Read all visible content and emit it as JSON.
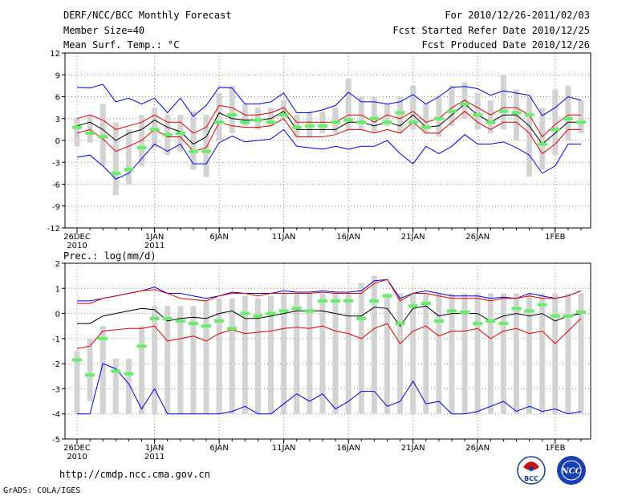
{
  "header": {
    "title": "DERF/NCC/BCC Monthly Forecast",
    "member_size": "Member Size=40",
    "panel1_variable": "Mean Surf. Temp.: °C",
    "period": "For 2010/12/26-2011/02/03",
    "fcst_started": "Fcst Started Refer Date 2010/12/25",
    "fcst_produced": "Fcst Produced Date 2010/12/26"
  },
  "footer": {
    "url": "http://cmdp.ncc.cma.gov.cn",
    "grads": "GrADS: COLA/IGES",
    "logo_bcc": "BCC",
    "logo_ncc": "NCC"
  },
  "colors": {
    "bar": "#d3d3d3",
    "median": "#66ee66",
    "mean": "#000000",
    "spread": "#dd0000",
    "extreme": "#0000dd"
  },
  "chart_data": [
    {
      "type": "box",
      "title": "Mean Surf. Temp.: °C",
      "ylim": [
        -12,
        12
      ],
      "yticks": [
        -12,
        -9,
        -6,
        -3,
        0,
        3,
        6,
        9,
        12
      ],
      "xticks": [
        {
          "day": 1,
          "label": "26DEC",
          "label2": "2010"
        },
        {
          "day": 7,
          "label": "1JAN",
          "label2": "2011"
        },
        {
          "day": 12,
          "label": "6JAN",
          "label2": ""
        },
        {
          "day": 17,
          "label": "11JAN",
          "label2": ""
        },
        {
          "day": 22,
          "label": "16JAN",
          "label2": ""
        },
        {
          "day": 27,
          "label": "21JAN",
          "label2": ""
        },
        {
          "day": 32,
          "label": "26JAN",
          "label2": ""
        },
        {
          "day": 38,
          "label": "1FEB",
          "label2": ""
        }
      ],
      "days": 40,
      "box_low": [
        -0.8,
        -0.3,
        -3.5,
        -7.5,
        -6,
        -3.5,
        -1,
        -2,
        -1.5,
        -4,
        -5,
        0,
        1,
        2,
        1.5,
        2,
        3,
        0.5,
        0.5,
        1,
        1,
        1.5,
        1.5,
        1,
        2,
        1,
        1.5,
        1,
        0.5,
        2,
        3,
        1.5,
        1,
        1.5,
        0,
        -5,
        -4,
        -2,
        0,
        1
      ],
      "box_high": [
        3,
        3.5,
        5,
        2.5,
        1.5,
        3.5,
        4.5,
        3.5,
        3.5,
        4,
        3.5,
        6.5,
        7.5,
        5,
        4.5,
        4.5,
        5.5,
        3.5,
        4,
        4,
        4.5,
        8.5,
        6,
        6,
        5,
        6,
        7.5,
        5,
        6,
        7.5,
        8,
        6.5,
        5.5,
        9,
        7,
        6,
        4.5,
        7,
        7.5,
        5.5
      ],
      "median": [
        1.8,
        1,
        0.5,
        -4.5,
        -4,
        -1,
        1.5,
        0.8,
        1,
        -1.5,
        -1.5,
        2.5,
        3.5,
        2.5,
        2.8,
        2.5,
        3.5,
        1.8,
        2,
        2,
        2.5,
        2.8,
        2.5,
        3,
        2.5,
        3.8,
        2.5,
        1.8,
        3,
        4,
        5,
        3.5,
        2.5,
        4,
        3.8,
        3.5,
        -0.5,
        1.5,
        3,
        2.5
      ],
      "mean": [
        2,
        2.5,
        1.5,
        0,
        1,
        1.5,
        2.8,
        1.8,
        1.2,
        -0.5,
        0.5,
        3.8,
        3,
        2.8,
        2.8,
        3,
        4,
        1.5,
        1.5,
        1.5,
        1.5,
        2.5,
        2.5,
        2,
        2.5,
        2,
        3.5,
        1.8,
        2,
        3.5,
        5,
        3.5,
        2.5,
        3.5,
        3.5,
        2,
        -0.5,
        1,
        2.5,
        2.5
      ],
      "upper": [
        3,
        3.5,
        2.8,
        1.5,
        2,
        2.5,
        3.5,
        2.5,
        2.5,
        1,
        1.8,
        4.8,
        4.5,
        3.5,
        3.5,
        3.8,
        4.5,
        2.5,
        2.5,
        2.5,
        2.5,
        3.5,
        3.5,
        2.5,
        3.5,
        3,
        4,
        2.5,
        3,
        4.5,
        5.5,
        4.5,
        3.5,
        4.5,
        4.5,
        3.5,
        0.5,
        2.2,
        3.5,
        3.5
      ],
      "lower": [
        1,
        1.5,
        0.2,
        -1.5,
        -0.8,
        0,
        1.5,
        0.5,
        0.5,
        -1.5,
        -1,
        2.5,
        2,
        1.8,
        1.8,
        2,
        3,
        0.5,
        0.5,
        0.5,
        0.8,
        1.5,
        1.5,
        1,
        1.5,
        1,
        2.5,
        1,
        1,
        2.5,
        4,
        2.5,
        1.5,
        2.5,
        2.5,
        1,
        -1.8,
        -0.5,
        1.5,
        1.5
      ],
      "max": [
        7.3,
        7.2,
        7.7,
        5.3,
        5.8,
        5,
        5.8,
        3.8,
        5.8,
        3.3,
        4.8,
        7.3,
        7.2,
        5,
        5,
        5.3,
        6.5,
        3.8,
        3.8,
        4.2,
        4.8,
        6.6,
        5.3,
        5.3,
        5,
        5.3,
        6.3,
        5,
        6,
        7.3,
        7.4,
        7.1,
        6.2,
        6.8,
        6.5,
        6.2,
        3.4,
        4.5,
        6,
        5.5
      ],
      "min": [
        -2.3,
        -2,
        -3.5,
        -5.3,
        -4.5,
        -2.5,
        -0.5,
        -1.5,
        -0.5,
        -3.2,
        -3.2,
        -0.3,
        0.6,
        -0.2,
        0,
        0.2,
        1.5,
        -0.8,
        -1,
        -1.2,
        -0.8,
        -1.2,
        -0.8,
        -0.8,
        0,
        -1.8,
        -3.2,
        -0.8,
        -1.8,
        -0.8,
        0.8,
        -0.5,
        -0.5,
        -0.2,
        -1,
        -2,
        -4.5,
        -3.5,
        -0.5,
        -0.5
      ]
    },
    {
      "type": "box",
      "title": "Prec.: log(mm/d)",
      "ylim": [
        -5,
        2
      ],
      "yticks": [
        -5,
        -4,
        -3,
        -2,
        -1,
        0,
        1,
        2
      ],
      "xticks": [
        {
          "day": 1,
          "label": "26DEC",
          "label2": "2010"
        },
        {
          "day": 7,
          "label": "1JAN",
          "label2": "2011"
        },
        {
          "day": 12,
          "label": "6JAN",
          "label2": ""
        },
        {
          "day": 17,
          "label": "11JAN",
          "label2": ""
        },
        {
          "day": 22,
          "label": "16JAN",
          "label2": ""
        },
        {
          "day": 27,
          "label": "21JAN",
          "label2": ""
        },
        {
          "day": 32,
          "label": "26JAN",
          "label2": ""
        },
        {
          "day": 38,
          "label": "1FEB",
          "label2": ""
        }
      ],
      "days": 40,
      "box_low": [
        -4,
        -3.5,
        -4,
        -4,
        -4,
        -4,
        -4,
        -4,
        -4,
        -4,
        -4,
        -4,
        -4,
        -4,
        -4,
        -4,
        -4,
        -4,
        -4,
        -4,
        -4,
        -4,
        -4,
        -4,
        -4,
        -4,
        -4,
        -4,
        -4,
        -4,
        -4,
        -4,
        -4,
        -4,
        -4,
        -4,
        -4,
        -4,
        -4,
        -4
      ],
      "box_high": [
        -1.5,
        -1,
        -0.5,
        -1.8,
        -1.8,
        -0.5,
        0.3,
        0.3,
        0.3,
        0.3,
        0.5,
        0.6,
        0.6,
        0.7,
        0.6,
        0.7,
        0.8,
        0.8,
        0.8,
        0.8,
        0.8,
        0.8,
        1.2,
        1.5,
        0.8,
        0.8,
        0.8,
        0.8,
        0.8,
        0.8,
        0.8,
        0.8,
        0.8,
        0.8,
        0.8,
        0.8,
        0.8,
        0.8,
        0.8,
        0.8
      ],
      "median": [
        -1.85,
        -2.45,
        -1,
        -2.3,
        -2.4,
        -1.3,
        -0.2,
        -0.2,
        -0.3,
        -0.4,
        -0.5,
        -0.3,
        -0.6,
        0,
        -0.1,
        0,
        0.1,
        0.2,
        0.1,
        0.5,
        0.5,
        0.5,
        -0.2,
        0.5,
        0.7,
        -0.4,
        0.3,
        0.4,
        -0.3,
        0.1,
        0.05,
        -0.4,
        -0.3,
        -0.4,
        0.2,
        0.1,
        0.35,
        -0.1,
        -0.1,
        0.05
      ],
      "mean": [
        -0.4,
        -0.4,
        -0.1,
        0,
        0.1,
        0.2,
        0.15,
        -0.3,
        -0.2,
        -0.15,
        -0.2,
        0,
        0.1,
        -0.2,
        -0.2,
        -0.1,
        0,
        0.1,
        0.1,
        0.1,
        0,
        -0.1,
        -0.1,
        0.25,
        0.2,
        -0.5,
        0.2,
        0.3,
        -0.1,
        0,
        0,
        0,
        -0.3,
        -0.1,
        0,
        -0.1,
        0,
        -0.3,
        -0.1,
        0
      ],
      "upper": [
        0.4,
        0.4,
        0.6,
        0.7,
        0.8,
        0.9,
        0.95,
        0.8,
        0.6,
        0.55,
        0.5,
        0.7,
        0.8,
        0.8,
        0.7,
        0.8,
        0.8,
        0.8,
        0.8,
        0.85,
        0.8,
        0.8,
        0.8,
        1.2,
        1.35,
        0.5,
        0.8,
        0.8,
        0.7,
        0.6,
        0.6,
        0.6,
        0.5,
        0.6,
        0.6,
        0.7,
        0.6,
        0.6,
        0.7,
        0.9
      ],
      "lower": [
        -1.4,
        -1.3,
        -0.7,
        -0.65,
        -0.6,
        -0.6,
        -0.5,
        -1.1,
        -1,
        -0.9,
        -1.1,
        -0.8,
        -0.65,
        -0.8,
        -0.75,
        -0.7,
        -0.6,
        -0.55,
        -0.6,
        -0.5,
        -0.7,
        -0.8,
        -1,
        -0.6,
        -0.4,
        -1.2,
        -0.7,
        -0.5,
        -0.9,
        -0.7,
        -0.7,
        -0.6,
        -1,
        -0.7,
        -0.6,
        -0.8,
        -0.7,
        -1.2,
        -0.7,
        -0.2
      ],
      "max": [
        0.5,
        0.5,
        0.6,
        0.7,
        0.8,
        0.9,
        1.05,
        0.8,
        0.8,
        0.7,
        0.6,
        0.7,
        0.85,
        0.8,
        0.8,
        0.8,
        0.9,
        0.85,
        0.85,
        0.9,
        0.85,
        0.85,
        0.9,
        1.3,
        1.35,
        0.6,
        0.8,
        0.9,
        0.8,
        0.7,
        0.7,
        0.7,
        0.6,
        0.65,
        0.6,
        0.8,
        0.7,
        0.6,
        0.7,
        0.9
      ],
      "min": [
        -4,
        -4,
        -2,
        -2.2,
        -2.8,
        -3.8,
        -3,
        -4,
        -4,
        -4,
        -4,
        -4,
        -3.9,
        -3.7,
        -4,
        -4,
        -3.6,
        -3.2,
        -3.5,
        -3.2,
        -3.8,
        -3.5,
        -3.1,
        -3.1,
        -3.7,
        -3.5,
        -2.7,
        -3.6,
        -3.5,
        -4,
        -4,
        -3.9,
        -3.7,
        -3.5,
        -3.9,
        -3.7,
        -3.9,
        -3.8,
        -4,
        -3.9
      ]
    }
  ]
}
